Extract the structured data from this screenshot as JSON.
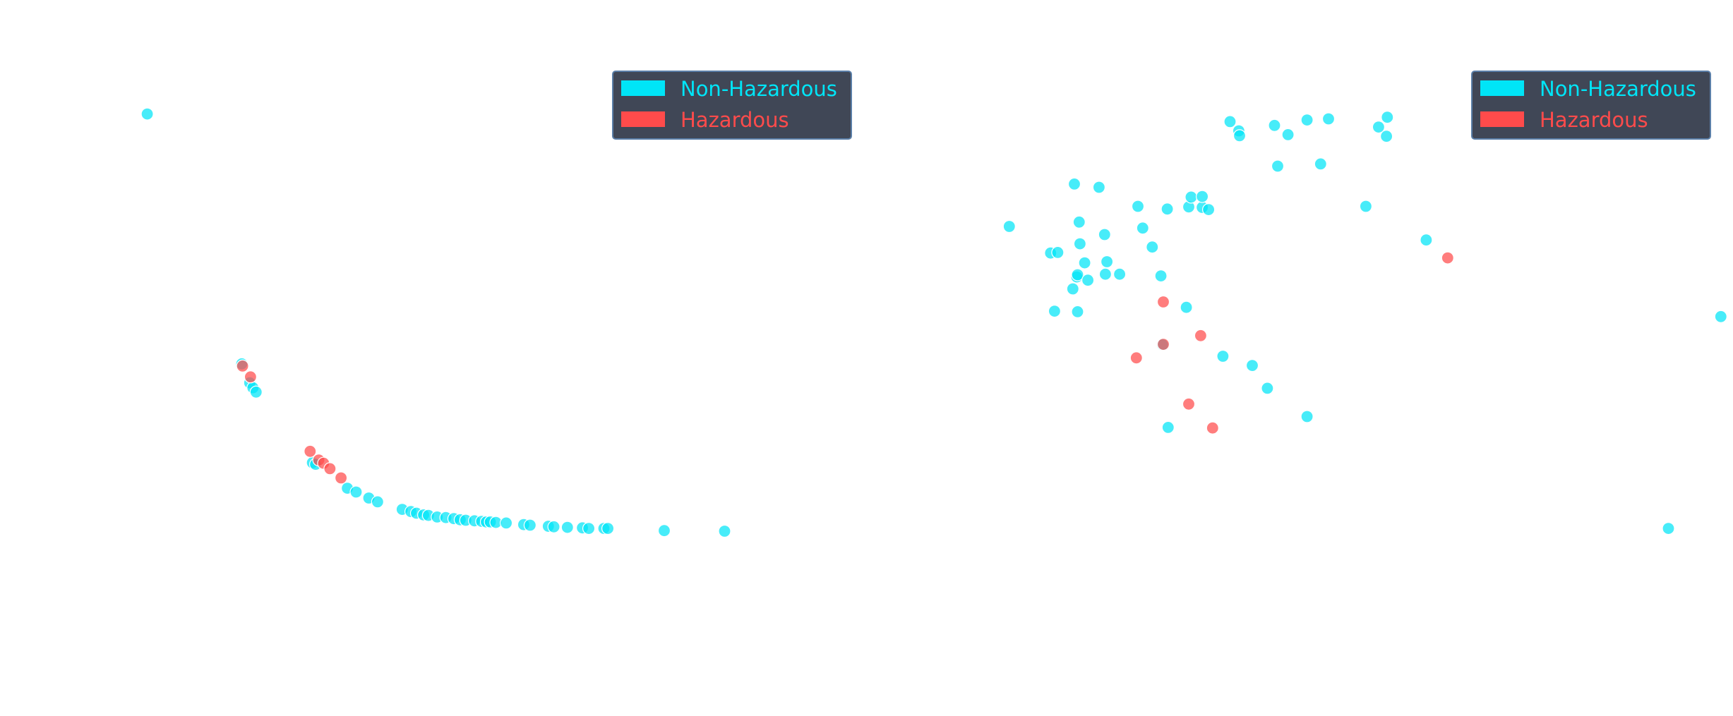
{
  "colors": {
    "non_hazardous": "#00E5F7",
    "hazardous": "#FF4B4B",
    "legend_bg": "#404756",
    "legend_border": "#5B7FA8"
  },
  "chart_data": [
    {
      "type": "scatter",
      "title": "",
      "xlabel": "",
      "ylabel": "",
      "grid": false,
      "legend_position": "top-right",
      "legend": {
        "non_hazardous_label": "Non-Hazardous",
        "hazardous_label": "Hazardous"
      },
      "xlim": [
        0,
        1
      ],
      "ylim": [
        0,
        1
      ],
      "series": [
        {
          "name": "Non-Hazardous",
          "color": "#00E5F7",
          "points": [
            [
              0.101,
              0.933
            ],
            [
              0.22,
              0.473
            ],
            [
              0.23,
              0.438
            ],
            [
              0.234,
              0.429
            ],
            [
              0.238,
              0.421
            ],
            [
              0.309,
              0.291
            ],
            [
              0.313,
              0.288
            ],
            [
              0.353,
              0.244
            ],
            [
              0.364,
              0.237
            ],
            [
              0.38,
              0.226
            ],
            [
              0.391,
              0.219
            ],
            [
              0.422,
              0.205
            ],
            [
              0.433,
              0.201
            ],
            [
              0.44,
              0.198
            ],
            [
              0.449,
              0.195
            ],
            [
              0.455,
              0.194
            ],
            [
              0.466,
              0.191
            ],
            [
              0.477,
              0.19
            ],
            [
              0.487,
              0.188
            ],
            [
              0.495,
              0.186
            ],
            [
              0.502,
              0.185
            ],
            [
              0.513,
              0.184
            ],
            [
              0.522,
              0.183
            ],
            [
              0.528,
              0.182
            ],
            [
              0.533,
              0.182
            ],
            [
              0.54,
              0.181
            ],
            [
              0.553,
              0.18
            ],
            [
              0.575,
              0.177
            ],
            [
              0.583,
              0.176
            ],
            [
              0.606,
              0.174
            ],
            [
              0.613,
              0.173
            ],
            [
              0.63,
              0.172
            ],
            [
              0.649,
              0.171
            ],
            [
              0.657,
              0.17
            ],
            [
              0.676,
              0.17
            ],
            [
              0.681,
              0.17
            ],
            [
              0.752,
              0.166
            ],
            [
              0.828,
              0.165
            ]
          ]
        },
        {
          "name": "Hazardous",
          "color": "#FF4B4B",
          "points": [
            [
              0.221,
              0.469
            ],
            [
              0.231,
              0.449
            ],
            [
              0.306,
              0.312
            ],
            [
              0.317,
              0.296
            ],
            [
              0.323,
              0.29
            ],
            [
              0.331,
              0.28
            ],
            [
              0.345,
              0.263
            ]
          ]
        }
      ]
    },
    {
      "type": "scatter",
      "title": "",
      "xlabel": "",
      "ylabel": "",
      "grid": false,
      "legend_position": "top-right",
      "legend": {
        "non_hazardous_label": "Non-Hazardous",
        "hazardous_label": "Hazardous"
      },
      "xlim": [
        0,
        1
      ],
      "ylim": [
        0,
        1
      ],
      "series": [
        {
          "name": "Non-Hazardous",
          "color": "#00E5F7",
          "points": [
            [
              0.102,
              0.726
            ],
            [
              0.154,
              0.677
            ],
            [
              0.159,
              0.57
            ],
            [
              0.163,
              0.678
            ],
            [
              0.182,
              0.611
            ],
            [
              0.184,
              0.804
            ],
            [
              0.187,
              0.633
            ],
            [
              0.188,
              0.637
            ],
            [
              0.188,
              0.569
            ],
            [
              0.19,
              0.734
            ],
            [
              0.191,
              0.694
            ],
            [
              0.197,
              0.659
            ],
            [
              0.201,
              0.627
            ],
            [
              0.215,
              0.798
            ],
            [
              0.222,
              0.711
            ],
            [
              0.223,
              0.638
            ],
            [
              0.225,
              0.661
            ],
            [
              0.241,
              0.638
            ],
            [
              0.264,
              0.763
            ],
            [
              0.27,
              0.723
            ],
            [
              0.282,
              0.688
            ],
            [
              0.293,
              0.635
            ],
            [
              0.295,
              0.508
            ],
            [
              0.301,
              0.758
            ],
            [
              0.302,
              0.356
            ],
            [
              0.325,
              0.577
            ],
            [
              0.328,
              0.762
            ],
            [
              0.331,
              0.78
            ],
            [
              0.345,
              0.761
            ],
            [
              0.345,
              0.781
            ],
            [
              0.353,
              0.757
            ],
            [
              0.371,
              0.487
            ],
            [
              0.38,
              0.919
            ],
            [
              0.391,
              0.902
            ],
            [
              0.392,
              0.893
            ],
            [
              0.408,
              0.47
            ],
            [
              0.427,
              0.428
            ],
            [
              0.436,
              0.912
            ],
            [
              0.44,
              0.837
            ],
            [
              0.453,
              0.895
            ],
            [
              0.477,
              0.922
            ],
            [
              0.477,
              0.376
            ],
            [
              0.494,
              0.841
            ],
            [
              0.504,
              0.924
            ],
            [
              0.551,
              0.763
            ],
            [
              0.567,
              0.909
            ],
            [
              0.577,
              0.892
            ],
            [
              0.578,
              0.927
            ],
            [
              0.627,
              0.701
            ],
            [
              0.932,
              0.17
            ],
            [
              0.998,
              0.56
            ]
          ]
        },
        {
          "name": "Hazardous",
          "color": "#FF4B4B",
          "points": [
            [
              0.262,
              0.484
            ],
            [
              0.296,
              0.587
            ],
            [
              0.296,
              0.509
            ],
            [
              0.328,
              0.399
            ],
            [
              0.343,
              0.525
            ],
            [
              0.358,
              0.355
            ],
            [
              0.654,
              0.668
            ]
          ]
        }
      ]
    }
  ]
}
